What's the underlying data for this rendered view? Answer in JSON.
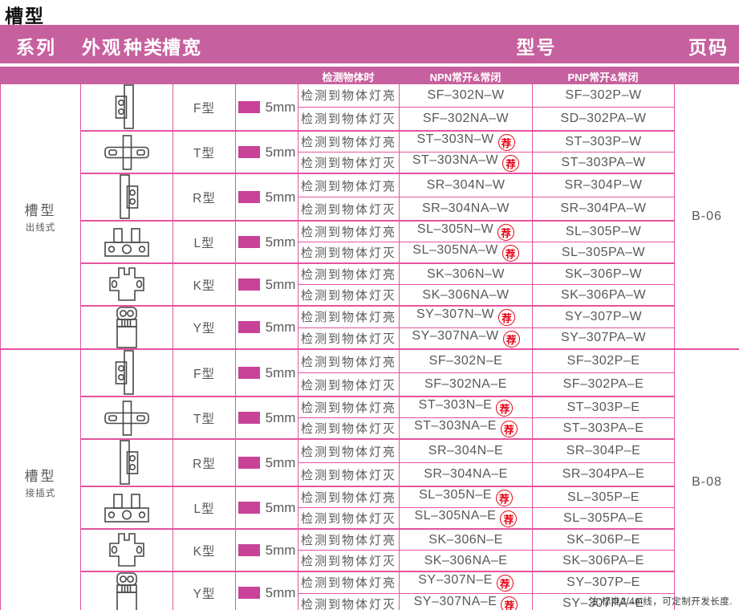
{
  "title": "槽型",
  "header": {
    "series": "系列",
    "appearance": "外观",
    "kind": "种类",
    "slot_width": "槽宽",
    "model": "型号",
    "page": "页码"
  },
  "subheader": {
    "detect": "检测物体时",
    "npn": "NPN常开&常闭",
    "pnp": "PNP常开&常闭"
  },
  "slot_width_value": "5mm",
  "recommend_badge": "荐",
  "note": "注:标准2/4m线，可定制开发长度.",
  "colors": {
    "band_pink": "#c7609e",
    "grid_pink": "#e5549f",
    "swatch_pink": "#c84398",
    "badge_red": "#e60012",
    "text_gray": "#5a5858"
  },
  "series": [
    {
      "name": "槽型",
      "subname": "出线式",
      "page": "B-06",
      "groups": [
        {
          "type": "F型",
          "icon": "f-type-sensor-icon",
          "rows": [
            {
              "detect": "检测到物体灯亮",
              "npn": "SF–302N–W",
              "npn_rec": false,
              "pnp": "SF–302P–W"
            },
            {
              "detect": "检测到物体灯灭",
              "npn": "SF–302NA–W",
              "npn_rec": false,
              "pnp": "SD–302PA–W"
            }
          ]
        },
        {
          "type": "T型",
          "icon": "t-type-sensor-icon",
          "rows": [
            {
              "detect": "检测到物体灯亮",
              "npn": "ST–303N–W",
              "npn_rec": true,
              "pnp": "ST–303P–W"
            },
            {
              "detect": "检测到物体灯灭",
              "npn": "ST–303NA–W",
              "npn_rec": true,
              "pnp": "ST–303PA–W"
            }
          ]
        },
        {
          "type": "R型",
          "icon": "r-type-sensor-icon",
          "rows": [
            {
              "detect": "检测到物体灯亮",
              "npn": "SR–304N–W",
              "npn_rec": false,
              "pnp": "SR–304P–W"
            },
            {
              "detect": "检测到物体灯灭",
              "npn": "SR–304NA–W",
              "npn_rec": false,
              "pnp": "SR–304PA–W"
            }
          ]
        },
        {
          "type": "L型",
          "icon": "l-type-sensor-icon",
          "rows": [
            {
              "detect": "检测到物体灯亮",
              "npn": "SL–305N–W",
              "npn_rec": true,
              "pnp": "SL–305P–W"
            },
            {
              "detect": "检测到物体灯灭",
              "npn": "SL–305NA–W",
              "npn_rec": true,
              "pnp": "SL–305PA–W"
            }
          ]
        },
        {
          "type": "K型",
          "icon": "k-type-sensor-icon",
          "rows": [
            {
              "detect": "检测到物体灯亮",
              "npn": "SK–306N–W",
              "npn_rec": false,
              "pnp": "SK–306P–W"
            },
            {
              "detect": "检测到物体灯灭",
              "npn": "SK–306NA–W",
              "npn_rec": false,
              "pnp": "SK–306PA–W"
            }
          ]
        },
        {
          "type": "Y型",
          "icon": "y-type-sensor-icon",
          "rows": [
            {
              "detect": "检测到物体灯亮",
              "npn": "SY–307N–W",
              "npn_rec": true,
              "pnp": "SY–307P–W"
            },
            {
              "detect": "检测到物体灯灭",
              "npn": "SY–307NA–W",
              "npn_rec": true,
              "pnp": "SY–307PA–W"
            }
          ]
        }
      ]
    },
    {
      "name": "槽型",
      "subname": "接插式",
      "page": "B-08",
      "groups": [
        {
          "type": "F型",
          "icon": "f-type-sensor-icon",
          "rows": [
            {
              "detect": "检测到物体灯亮",
              "npn": "SF–302N–E",
              "npn_rec": false,
              "pnp": "SF–302P–E"
            },
            {
              "detect": "检测到物体灯灭",
              "npn": "SF–302NA–E",
              "npn_rec": false,
              "pnp": "SF–302PA–E"
            }
          ]
        },
        {
          "type": "T型",
          "icon": "t-type-sensor-icon",
          "rows": [
            {
              "detect": "检测到物体灯亮",
              "npn": "ST–303N–E",
              "npn_rec": true,
              "pnp": "ST–303P–E"
            },
            {
              "detect": "检测到物体灯灭",
              "npn": "ST–303NA–E",
              "npn_rec": true,
              "pnp": "ST–303PA–E"
            }
          ]
        },
        {
          "type": "R型",
          "icon": "r-type-sensor-icon",
          "rows": [
            {
              "detect": "检测到物体灯亮",
              "npn": "SR–304N–E",
              "npn_rec": false,
              "pnp": "SR–304P–E"
            },
            {
              "detect": "检测到物体灯灭",
              "npn": "SR–304NA–E",
              "npn_rec": false,
              "pnp": "SR–304PA–E"
            }
          ]
        },
        {
          "type": "L型",
          "icon": "l-type-sensor-icon",
          "rows": [
            {
              "detect": "检测到物体灯亮",
              "npn": "SL–305N–E",
              "npn_rec": true,
              "pnp": "SL–305P–E"
            },
            {
              "detect": "检测到物体灯灭",
              "npn": "SL–305NA–E",
              "npn_rec": true,
              "pnp": "SL–305PA–E"
            }
          ]
        },
        {
          "type": "K型",
          "icon": "k-type-sensor-icon",
          "rows": [
            {
              "detect": "检测到物体灯亮",
              "npn": "SK–306N–E",
              "npn_rec": false,
              "pnp": "SK–306P–E"
            },
            {
              "detect": "检测到物体灯灭",
              "npn": "SK–306NA–E",
              "npn_rec": false,
              "pnp": "SK–306PA–E"
            }
          ]
        },
        {
          "type": "Y型",
          "icon": "y-type-sensor-icon",
          "rows": [
            {
              "detect": "检测到物体灯亮",
              "npn": "SY–307N–E",
              "npn_rec": true,
              "pnp": "SY–307P–E"
            },
            {
              "detect": "检测到物体灯灭",
              "npn": "SY–307NA–E",
              "npn_rec": true,
              "pnp": "SY–307PA–E"
            }
          ]
        }
      ]
    }
  ]
}
